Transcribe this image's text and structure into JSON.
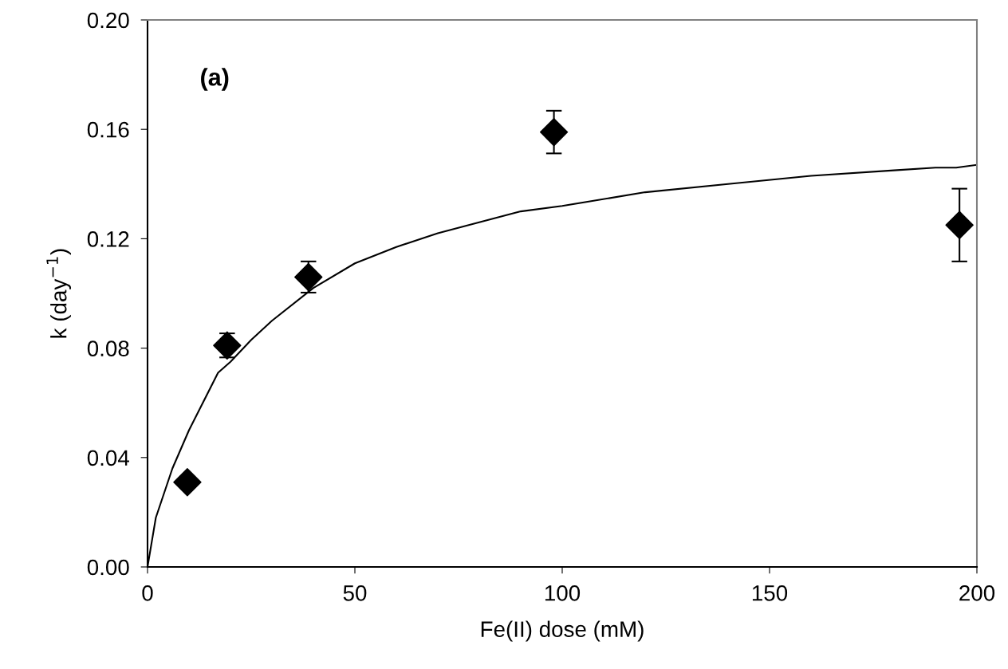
{
  "chart_data": {
    "type": "scatter",
    "xlabel": "Fe(II) dose (mM)",
    "ylabel": "k (day$^{−1}$)",
    "annotations": [
      "(a)"
    ],
    "xlim": [
      0,
      200
    ],
    "xticks": [
      0,
      50,
      100,
      150,
      200
    ],
    "ylim": [
      0,
      0.2
    ],
    "yticks": [
      {
        "value": 0,
        "label": "0.00"
      },
      {
        "value": 0.04,
        "label": "0.04"
      },
      {
        "value": 0.08,
        "label": "0.08"
      },
      {
        "value": 0.12,
        "label": "0.12"
      },
      {
        "value": 0.16,
        "label": "0.16"
      },
      {
        "value": 0.2,
        "label": "0.20"
      }
    ],
    "grid": false,
    "legend": false,
    "series": [
      {
        "type": "line",
        "color": "#000000",
        "marker": "none",
        "line_style": "solid",
        "x": [
          0,
          2,
          6,
          10,
          17,
          20,
          25,
          30,
          40,
          50,
          60,
          70,
          80,
          90,
          100,
          120,
          140,
          160,
          180,
          190,
          195,
          200
        ],
        "values": [
          0,
          0.018,
          0.036,
          0.05,
          0.071,
          0.075,
          0.083,
          0.09,
          0.102,
          0.111,
          0.117,
          0.122,
          0.126,
          0.13,
          0.132,
          0.137,
          0.14,
          0.143,
          0.145,
          0.146,
          0.146,
          0.147
        ]
      },
      {
        "color": "#000000",
        "marker": "diamond",
        "x": [
          9.6,
          19.2,
          38.8,
          98,
          195.8
        ],
        "values": [
          0.031,
          0.081,
          0.106,
          0.159,
          0.125
        ],
        "errors": [
          0.002,
          0.0044,
          0.0057,
          0.0078,
          0.0133
        ]
      }
    ]
  }
}
